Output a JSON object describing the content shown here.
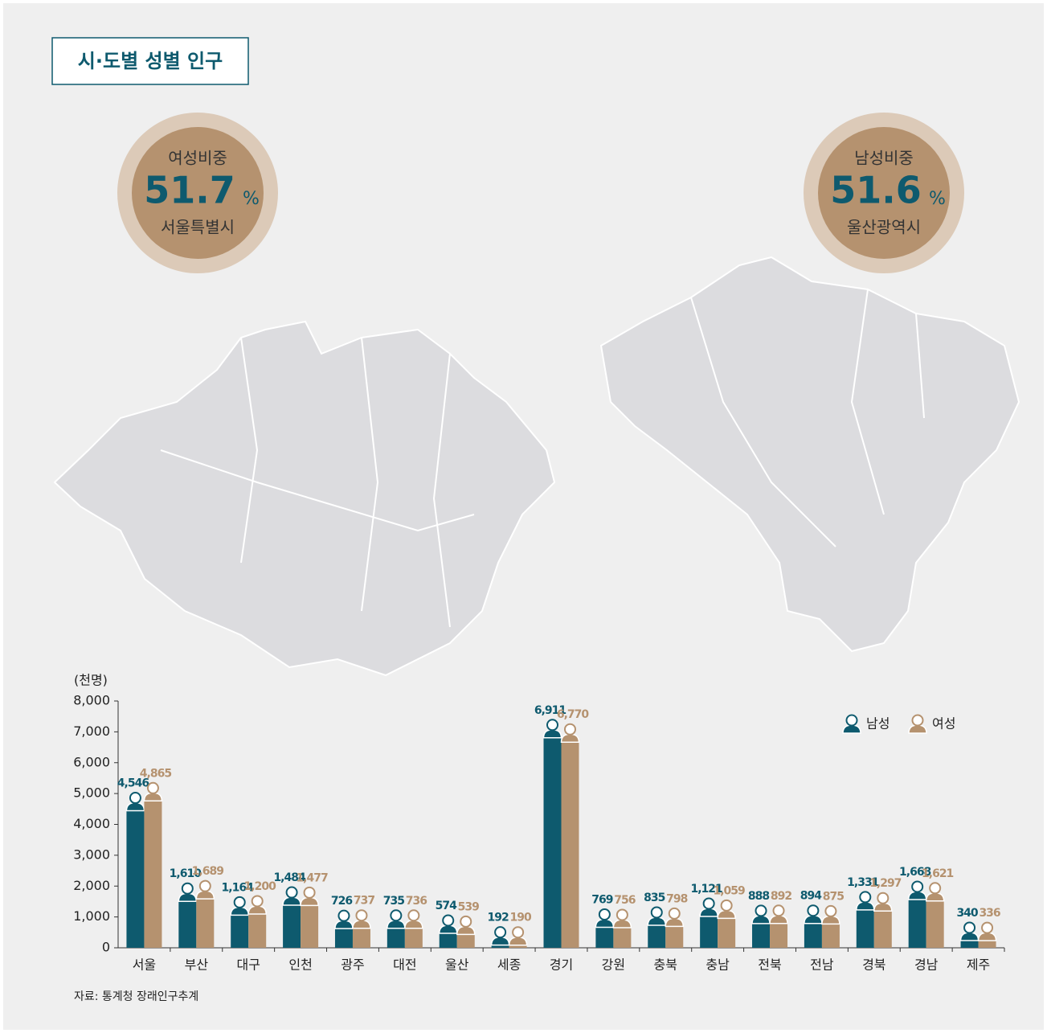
{
  "header": {
    "title": "시·도별 성별 인구"
  },
  "highlights": [
    {
      "label": "여성비중",
      "value": 51.7,
      "unit": "%",
      "region": "서울특별시"
    },
    {
      "label": "남성비중",
      "value": 51.6,
      "unit": "%",
      "region": "울산광역시"
    }
  ],
  "chart_data": {
    "type": "bar",
    "y_label": "(천명)",
    "categories": [
      "서울",
      "부산",
      "대구",
      "인천",
      "광주",
      "대전",
      "울산",
      "세종",
      "경기",
      "강원",
      "충북",
      "충남",
      "전북",
      "전남",
      "경북",
      "경남",
      "제주"
    ],
    "series": [
      {
        "name": "남성",
        "color": "#0e5a6e",
        "values": [
          4546,
          1610,
          1164,
          1484,
          726,
          735,
          574,
          192,
          6911,
          769,
          835,
          1121,
          888,
          894,
          1331,
          1668,
          340
        ],
        "value_labels": [
          "4,546",
          "1,610",
          "1,164",
          "1,484",
          "726",
          "735",
          "574",
          "192",
          "6,911",
          "769",
          "835",
          "1,121",
          "888",
          "894",
          "1,331",
          "1,668",
          "340"
        ]
      },
      {
        "name": "여성",
        "color": "#b5926f",
        "values": [
          4865,
          1689,
          1200,
          1477,
          737,
          736,
          539,
          190,
          6770,
          756,
          798,
          1059,
          892,
          875,
          1297,
          1621,
          336
        ],
        "value_labels": [
          "4,865",
          "1,689",
          "1,200",
          "1,477",
          "737",
          "736",
          "539",
          "190",
          "6,770",
          "756",
          "798",
          "1,059",
          "892",
          "875",
          "1,297",
          "1,621",
          "336"
        ]
      }
    ],
    "ylim": [
      0,
      8000
    ],
    "yticks": [
      0,
      {
        "value": 1000,
        "label": "1,000"
      },
      {
        "value": 2000,
        "label": "2,000"
      },
      {
        "value": 3000,
        "label": "3,000"
      },
      {
        "value": 4000,
        "label": "4,000"
      },
      {
        "value": 5000,
        "label": "5,000"
      },
      {
        "value": 6000,
        "label": "6,000"
      },
      {
        "value": 7000,
        "label": "7,000"
      },
      {
        "value": 8000,
        "label": "8,000"
      }
    ],
    "legend": "upper right",
    "source": "자료: 통계청 장래인구추계"
  }
}
